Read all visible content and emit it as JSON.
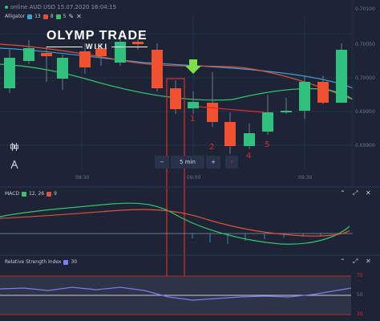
{
  "header": {
    "status": "online AUD USD 15.07.2020 16:04:15",
    "indicator_name": "Alligator",
    "indicator_values": [
      "13",
      "8",
      "5"
    ]
  },
  "logo": {
    "line1": "OLYMP TRADE",
    "line2": "WIKI"
  },
  "price_axis": [
    "0.70100",
    "0.70050",
    "0.70000",
    "0.69950",
    "0.69900"
  ],
  "time_axis": [
    "08:30",
    "09:00",
    "09:30"
  ],
  "timeframe": {
    "minus": "−",
    "label": "5 min",
    "plus": "+"
  },
  "annotations": [
    "1",
    "2",
    "4",
    "5"
  ],
  "macd": {
    "title": "MACD",
    "values": "12, 26",
    "signal": "9"
  },
  "rsi": {
    "title": "Relative Strength Index",
    "period": "30",
    "levels": [
      "70",
      "50",
      "30"
    ]
  },
  "colors": {
    "background": "#1c2436",
    "bull": "#2ec27e",
    "bear": "#f0522f",
    "jaw": "#3aa0d8",
    "teeth": "#e2503a",
    "lips": "#35c46b",
    "rsi_line": "#7a7cf0",
    "highlight": "#e02a2a"
  },
  "icons": [
    "candlestick-icon",
    "drawing-tool-icon",
    "chevron-up-icon",
    "expand-icon",
    "close-icon"
  ]
}
